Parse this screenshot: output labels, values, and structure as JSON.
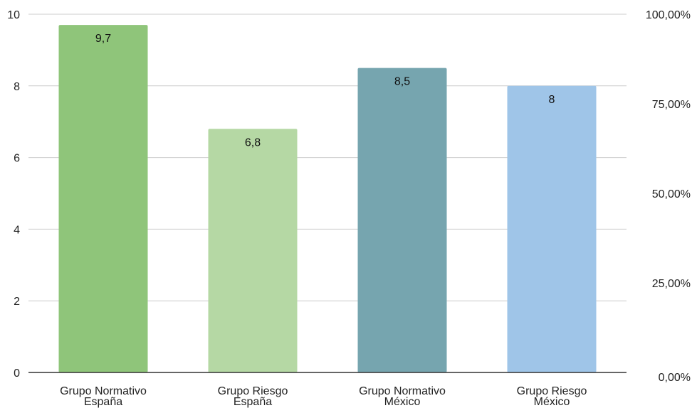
{
  "chart_data": {
    "type": "bar",
    "categories": [
      [
        "Grupo Normativo",
        "España"
      ],
      [
        "Grupo Riesgo",
        "España"
      ],
      [
        "Grupo Normativo",
        "México"
      ],
      [
        "Grupo Riesgo",
        "México"
      ]
    ],
    "values": [
      9.7,
      6.8,
      8.5,
      8
    ],
    "data_labels": [
      "9,7",
      "6,8",
      "8,5",
      "8"
    ],
    "colors": [
      "#8fc57a",
      "#b5d8a4",
      "#76a5af",
      "#9fc5e8"
    ],
    "title": "",
    "xlabel": "",
    "ylabel": "",
    "ylim": [
      0,
      10
    ],
    "y_ticks": [
      "0",
      "2",
      "4",
      "6",
      "8",
      "10"
    ],
    "y2_ticks": [
      "0,00%",
      "25,00%",
      "50,00%",
      "75,00%",
      "100,00%"
    ],
    "grid": true,
    "legend": "none"
  }
}
